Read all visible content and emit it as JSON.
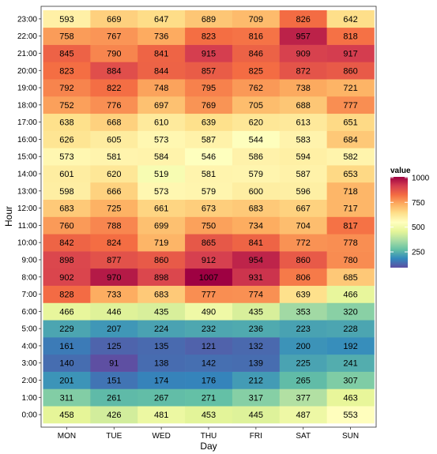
{
  "chart_data": {
    "type": "heatmap",
    "title": "",
    "xlabel": "Day",
    "ylabel": "Hour",
    "x_categories": [
      "MON",
      "TUE",
      "WED",
      "THU",
      "FRI",
      "SAT",
      "SUN"
    ],
    "y_categories": [
      "0:00",
      "1:00",
      "2:00",
      "3:00",
      "4:00",
      "5:00",
      "6:00",
      "7:00",
      "8:00",
      "9:00",
      "10:00",
      "11:00",
      "12:00",
      "13:00",
      "14:00",
      "15:00",
      "16:00",
      "17:00",
      "18:00",
      "19:00",
      "20:00",
      "21:00",
      "22:00",
      "23:00"
    ],
    "values": [
      [
        458,
        426,
        481,
        453,
        445,
        487,
        553
      ],
      [
        311,
        261,
        267,
        271,
        317,
        377,
        463
      ],
      [
        201,
        151,
        174,
        176,
        212,
        265,
        307
      ],
      [
        140,
        91,
        138,
        142,
        139,
        225,
        241
      ],
      [
        161,
        125,
        135,
        121,
        132,
        200,
        192
      ],
      [
        229,
        207,
        224,
        232,
        236,
        223,
        228
      ],
      [
        466,
        446,
        435,
        490,
        435,
        353,
        320
      ],
      [
        828,
        733,
        683,
        777,
        774,
        639,
        466
      ],
      [
        902,
        970,
        898,
        1007,
        931,
        806,
        685
      ],
      [
        898,
        877,
        860,
        912,
        954,
        860,
        780
      ],
      [
        842,
        824,
        719,
        865,
        841,
        772,
        778
      ],
      [
        760,
        788,
        699,
        750,
        734,
        704,
        817
      ],
      [
        683,
        725,
        661,
        673,
        683,
        667,
        717
      ],
      [
        598,
        666,
        573,
        579,
        600,
        596,
        718
      ],
      [
        601,
        620,
        519,
        581,
        579,
        587,
        653
      ],
      [
        573,
        581,
        584,
        546,
        586,
        594,
        582
      ],
      [
        626,
        605,
        573,
        587,
        544,
        583,
        684
      ],
      [
        638,
        668,
        610,
        639,
        620,
        613,
        651
      ],
      [
        752,
        776,
        697,
        769,
        705,
        688,
        777
      ],
      [
        792,
        822,
        748,
        795,
        762,
        738,
        721
      ],
      [
        823,
        884,
        844,
        857,
        825,
        872,
        860
      ],
      [
        845,
        790,
        841,
        915,
        846,
        909,
        917
      ],
      [
        758,
        767,
        736,
        823,
        816,
        957,
        818
      ],
      [
        593,
        669,
        647,
        689,
        709,
        826,
        642
      ]
    ],
    "color_scale": {
      "name": "Spectral (reversed)",
      "domain": [
        91,
        1007
      ],
      "stops": [
        "#5e4fa2",
        "#3288bd",
        "#66c2a5",
        "#abdda4",
        "#e6f598",
        "#ffffbf",
        "#fee08b",
        "#fdae61",
        "#f46d43",
        "#d53e4f",
        "#9e0142"
      ]
    },
    "legend": {
      "title": "value",
      "ticks": [
        250,
        500,
        750,
        1000
      ],
      "placement": "right"
    },
    "grid": false
  }
}
